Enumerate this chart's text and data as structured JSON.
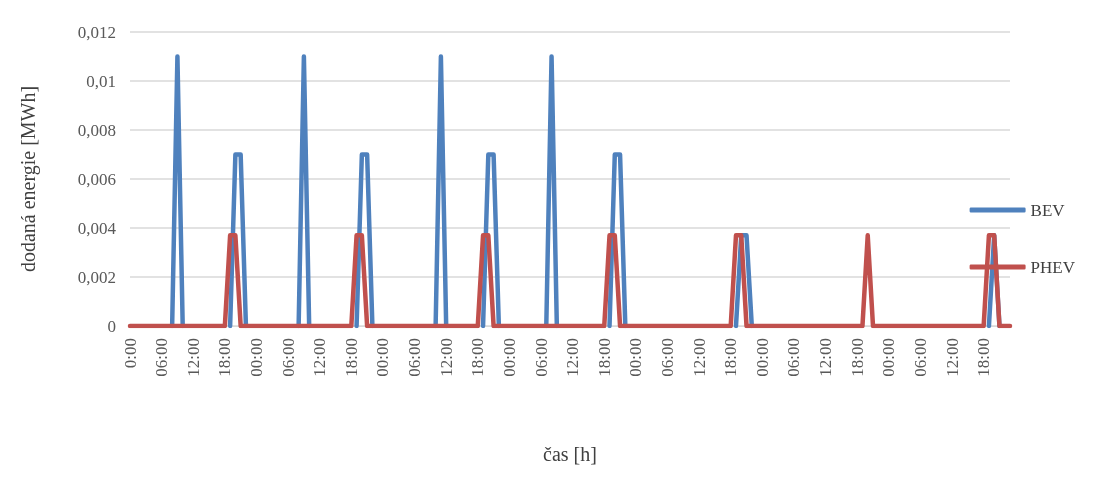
{
  "chart_data": {
    "type": "line",
    "xlabel": "čas [h]",
    "ylabel": "dodaná energie [MWh]",
    "categories": [
      "0:00",
      null,
      null,
      null,
      null,
      null,
      "06:00",
      null,
      null,
      null,
      null,
      null,
      "12:00",
      null,
      null,
      null,
      null,
      null,
      "18:00",
      null,
      null,
      null,
      null,
      null,
      "00:00",
      null,
      null,
      null,
      null,
      null,
      "06:00",
      null,
      null,
      null,
      null,
      null,
      "12:00",
      null,
      null,
      null,
      null,
      null,
      "18:00",
      null,
      null,
      null,
      null,
      null,
      "00:00",
      null,
      null,
      null,
      null,
      null,
      "06:00",
      null,
      null,
      null,
      null,
      null,
      "12:00",
      null,
      null,
      null,
      null,
      null,
      "18:00",
      null,
      null,
      null,
      null,
      null,
      "00:00",
      null,
      null,
      null,
      null,
      null,
      "06:00",
      null,
      null,
      null,
      null,
      null,
      "12:00",
      null,
      null,
      null,
      null,
      null,
      "18:00",
      null,
      null,
      null,
      null,
      null,
      "00:00",
      null,
      null,
      null,
      null,
      null,
      "06:00",
      null,
      null,
      null,
      null,
      null,
      "12:00",
      null,
      null,
      null,
      null,
      null,
      "18:00",
      null,
      null,
      null,
      null,
      null,
      "00:00",
      null,
      null,
      null,
      null,
      null,
      "06:00",
      null,
      null,
      null,
      null,
      null,
      "12:00",
      null,
      null,
      null,
      null,
      null,
      "18:00",
      null,
      null,
      null,
      null,
      null,
      "00:00",
      null,
      null,
      null,
      null,
      null,
      "06:00",
      null,
      null,
      null,
      null,
      null,
      "12:00",
      null,
      null,
      null,
      null,
      null,
      "18:00",
      null,
      null,
      null,
      null,
      null
    ],
    "series": [
      {
        "name": "BEV",
        "color": "#4f81bd",
        "values": [
          null,
          null,
          null,
          null,
          null,
          null,
          null,
          null,
          0,
          0.011,
          0,
          null,
          null,
          null,
          null,
          null,
          null,
          null,
          null,
          0,
          0.007,
          0.007,
          0,
          null,
          null,
          null,
          null,
          null,
          null,
          null,
          null,
          null,
          0,
          0.011,
          0,
          null,
          null,
          null,
          null,
          null,
          null,
          null,
          null,
          0,
          0.007,
          0.007,
          0,
          null,
          null,
          null,
          null,
          null,
          null,
          null,
          null,
          null,
          null,
          null,
          0,
          0.011,
          0,
          null,
          null,
          null,
          null,
          null,
          null,
          0,
          0.007,
          0.007,
          0,
          null,
          null,
          null,
          null,
          null,
          null,
          null,
          null,
          0,
          0.011,
          0,
          null,
          null,
          null,
          null,
          null,
          null,
          null,
          null,
          null,
          0,
          0.007,
          0.007,
          0,
          null,
          null,
          null,
          null,
          null,
          null,
          null,
          null,
          null,
          null,
          null,
          null,
          null,
          null,
          null,
          null,
          null,
          null,
          null,
          null,
          0,
          0.0037,
          0.0037,
          0,
          null,
          null,
          null,
          null,
          null,
          null,
          null,
          null,
          null,
          null,
          null,
          null,
          null,
          null,
          null,
          null,
          null,
          null,
          null,
          null,
          null,
          null,
          null,
          null,
          null,
          null,
          null,
          null,
          null,
          null,
          null,
          null,
          null,
          null,
          null,
          null,
          null,
          null,
          null,
          null,
          null,
          null,
          null,
          null,
          0,
          0.0037,
          0,
          null,
          null
        ]
      },
      {
        "name": "PHEV",
        "color": "#c0504d",
        "values": [
          0,
          0,
          0,
          0,
          0,
          0,
          0,
          0,
          0,
          0,
          0,
          0,
          0,
          0,
          0,
          0,
          0,
          0,
          0,
          0.0037,
          0.0037,
          0,
          0,
          0,
          0,
          0,
          0,
          0,
          0,
          0,
          0,
          0,
          0,
          0,
          0,
          0,
          0,
          0,
          0,
          0,
          0,
          0,
          0,
          0.0037,
          0.0037,
          0,
          0,
          0,
          0,
          0,
          0,
          0,
          0,
          0,
          0,
          0,
          0,
          0,
          0,
          0,
          0,
          0,
          0,
          0,
          0,
          0,
          0,
          0.0037,
          0.0037,
          0,
          0,
          0,
          0,
          0,
          0,
          0,
          0,
          0,
          0,
          0,
          0,
          0,
          0,
          0,
          0,
          0,
          0,
          0,
          0,
          0,
          0,
          0.0037,
          0.0037,
          0,
          0,
          0,
          0,
          0,
          0,
          0,
          0,
          0,
          0,
          0,
          0,
          0,
          0,
          0,
          0,
          0,
          0,
          0,
          0,
          0,
          0,
          0.0037,
          0.0037,
          0,
          0,
          0,
          0,
          0,
          0,
          0,
          0,
          0,
          0,
          0,
          0,
          0,
          0,
          0,
          0,
          0,
          0,
          0,
          0,
          0,
          0,
          0,
          0.0037,
          0,
          0,
          0,
          0,
          0,
          0,
          0,
          0,
          0,
          0,
          0,
          0,
          0,
          0,
          0,
          0,
          0,
          0,
          0,
          0,
          0,
          0,
          0.0037,
          0.0037,
          0,
          0,
          0
        ]
      }
    ],
    "ylim": [
      0,
      0.012
    ],
    "yticks": [
      0,
      {
        "value": 0.002,
        "label": "0,002"
      },
      {
        "value": 0.004,
        "label": "0,004"
      },
      {
        "value": 0.006,
        "label": "0,006"
      },
      {
        "value": 0.008,
        "label": "0,008"
      },
      {
        "value": 0.01,
        "label": "0,01"
      },
      {
        "value": 0.012,
        "label": "0,012"
      }
    ],
    "grid": "y",
    "legend": "right",
    "marker": "none",
    "line_style": "solid"
  }
}
